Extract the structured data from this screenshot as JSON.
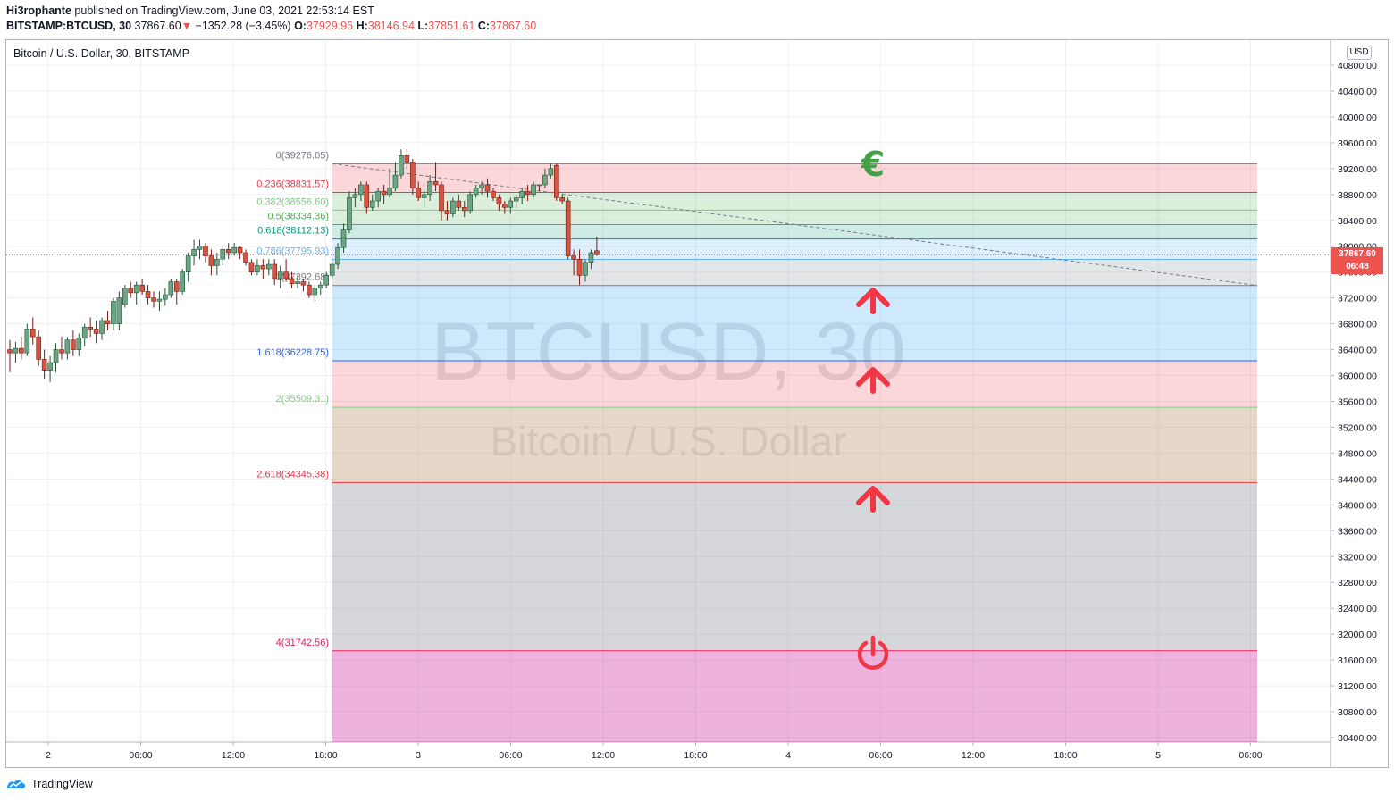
{
  "header": {
    "author": "Hi3rophante",
    "published_text": " published on TradingView.com, June 03, 2021 22:53:14 EST",
    "symbol": "BITSTAMP:BTCUSD, 30",
    "last": "37867.60",
    "change_arrow": "▼",
    "change": "−1352.28 (−3.45%)",
    "o_label": "O:",
    "o": "37929.96",
    "h_label": "H:",
    "h": "38146.94",
    "l_label": "L:",
    "l": "37851.61",
    "c_label": "C:",
    "c": "37867.60"
  },
  "legend": "Bitcoin / U.S. Dollar, 30, BITSTAMP",
  "watermark": {
    "line1": "BTCUSD, 30",
    "line2": "Bitcoin / U.S. Dollar"
  },
  "currency_badge": "USD",
  "price_tag": {
    "price": "37867.60",
    "countdown": "06:48"
  },
  "footer": {
    "brand": "TradingView"
  },
  "colors": {
    "up": "#4caf50",
    "up_body": "#6ba583",
    "down": "#d75442",
    "fib_red": "#f23645",
    "fib_green": "#4caf50",
    "fib_teal": "#089981",
    "fib_blue": "#2962ff",
    "accent": "#2196f3"
  },
  "chart_data": {
    "type": "candlestick",
    "title": "Bitcoin / U.S. Dollar, 30, BITSTAMP",
    "ylim": [
      30200,
      41000
    ],
    "yticks": [
      40800,
      40400,
      40000,
      39600,
      39200,
      38800,
      38400,
      38000,
      37600,
      37200,
      36800,
      36400,
      36000,
      35600,
      35200,
      34800,
      34400,
      34000,
      33600,
      33200,
      32800,
      32400,
      32000,
      31600,
      31200,
      30800,
      30400
    ],
    "ytick_labels": [
      "40800.00",
      "40400.00",
      "40000.00",
      "39600.00",
      "39200.00",
      "38800.00",
      "38400.00",
      "38000.00",
      "37600.00",
      "37200.00",
      "36800.00",
      "36400.00",
      "36000.00",
      "35600.00",
      "35200.00",
      "34800.00",
      "34400.00",
      "34000.00",
      "33600.00",
      "33200.00",
      "32800.00",
      "32400.00",
      "32000.00",
      "31600.00",
      "31200.00",
      "30800.00",
      "30400.00"
    ],
    "xticks": [
      "2",
      "06:00",
      "12:00",
      "18:00",
      "3",
      "06:00",
      "12:00",
      "18:00",
      "4",
      "06:00",
      "12:00",
      "18:00",
      "5",
      "06:00"
    ],
    "grid": true,
    "last_price": 37867.6,
    "fib_levels": [
      {
        "label": "0(39276.05)",
        "level": 0,
        "price": 39276.05,
        "color": "#787b86"
      },
      {
        "label": "0.236(38831.57)",
        "level": 0.236,
        "price": 38831.57,
        "color": "#f23645"
      },
      {
        "label": "0.382(38556.60)",
        "level": 0.382,
        "price": 38556.6,
        "color": "#81c784"
      },
      {
        "label": "0.5(38334.36)",
        "level": 0.5,
        "price": 38334.36,
        "color": "#4caf50"
      },
      {
        "label": "0.618(38112.13)",
        "level": 0.618,
        "price": 38112.13,
        "color": "#089981"
      },
      {
        "label": "0.786(37795.93)",
        "level": 0.786,
        "price": 37795.93,
        "color": "#64b5f6"
      },
      {
        "label": "1(37392.68)",
        "level": 1,
        "price": 37392.68,
        "color": "#787b86"
      },
      {
        "label": "1.618(36228.75)",
        "level": 1.618,
        "price": 36228.75,
        "color": "#2962ff"
      },
      {
        "label": "2(35509.31)",
        "level": 2,
        "price": 35509.31,
        "color": "#81c784"
      },
      {
        "label": "2.618(34345.38)",
        "level": 2.618,
        "price": 34345.38,
        "color": "#f23645"
      },
      {
        "label": "4(31742.56)",
        "level": 4,
        "price": 31742.56,
        "color": "#e91e63"
      }
    ],
    "candles": [
      [
        36400,
        36550,
        36050,
        36350
      ],
      [
        36350,
        36520,
        36200,
        36420
      ],
      [
        36420,
        36600,
        36250,
        36350
      ],
      [
        36350,
        36800,
        36300,
        36720
      ],
      [
        36720,
        36900,
        36480,
        36600
      ],
      [
        36600,
        36700,
        36150,
        36250
      ],
      [
        36250,
        36400,
        35950,
        36080
      ],
      [
        36080,
        36300,
        35900,
        36200
      ],
      [
        36200,
        36500,
        36050,
        36400
      ],
      [
        36400,
        36600,
        36250,
        36350
      ],
      [
        36350,
        36600,
        36250,
        36550
      ],
      [
        36550,
        36700,
        36300,
        36400
      ],
      [
        36400,
        36650,
        36300,
        36580
      ],
      [
        36580,
        36800,
        36450,
        36750
      ],
      [
        36750,
        36900,
        36600,
        36720
      ],
      [
        36720,
        36850,
        36500,
        36650
      ],
      [
        36650,
        36900,
        36550,
        36850
      ],
      [
        36850,
        37000,
        36700,
        36800
      ],
      [
        36800,
        37200,
        36700,
        37150
      ],
      [
        36800,
        37300,
        36700,
        37200
      ],
      [
        37100,
        37400,
        37050,
        37350
      ],
      [
        37350,
        37450,
        37200,
        37280
      ],
      [
        37280,
        37450,
        37100,
        37400
      ],
      [
        37400,
        37500,
        37250,
        37300
      ],
      [
        37300,
        37400,
        37100,
        37200
      ],
      [
        37200,
        37300,
        37050,
        37150
      ],
      [
        37150,
        37300,
        37000,
        37180
      ],
      [
        37180,
        37350,
        37080,
        37250
      ],
      [
        37250,
        37500,
        37200,
        37450
      ],
      [
        37450,
        37500,
        37100,
        37300
      ],
      [
        37300,
        37650,
        37250,
        37600
      ],
      [
        37600,
        37900,
        37450,
        37850
      ],
      [
        37850,
        38100,
        37700,
        37950
      ],
      [
        37950,
        38100,
        37800,
        38000
      ],
      [
        38000,
        38050,
        37750,
        37850
      ],
      [
        37850,
        37950,
        37550,
        37700
      ],
      [
        37700,
        37900,
        37550,
        37800
      ],
      [
        37800,
        38000,
        37700,
        37950
      ],
      [
        37950,
        38050,
        37800,
        37900
      ],
      [
        37900,
        38050,
        37850,
        37980
      ],
      [
        37980,
        38000,
        37800,
        37900
      ],
      [
        37900,
        37950,
        37700,
        37750
      ],
      [
        37750,
        37800,
        37550,
        37600
      ],
      [
        37600,
        37800,
        37550,
        37700
      ],
      [
        37700,
        37800,
        37500,
        37650
      ],
      [
        37650,
        37800,
        37550,
        37720
      ],
      [
        37720,
        37800,
        37400,
        37500
      ],
      [
        37500,
        37700,
        37350,
        37600
      ],
      [
        37600,
        37800,
        37450,
        37500
      ],
      [
        37500,
        37600,
        37350,
        37420
      ],
      [
        37420,
        37550,
        37350,
        37450
      ],
      [
        37450,
        37500,
        37300,
        37400
      ],
      [
        37400,
        37450,
        37200,
        37250
      ],
      [
        37250,
        37400,
        37150,
        37350
      ],
      [
        37350,
        37450,
        37250,
        37400
      ],
      [
        37400,
        37600,
        37350,
        37550
      ],
      [
        37550,
        37800,
        37500,
        37720
      ],
      [
        37720,
        38050,
        37650,
        37980
      ],
      [
        37980,
        38350,
        37900,
        38250
      ],
      [
        38250,
        38850,
        38200,
        38750
      ],
      [
        38750,
        38900,
        38600,
        38800
      ],
      [
        38800,
        39000,
        38700,
        38950
      ],
      [
        38950,
        39000,
        38500,
        38600
      ],
      [
        38600,
        38800,
        38550,
        38700
      ],
      [
        38700,
        38900,
        38600,
        38850
      ],
      [
        38850,
        38950,
        38650,
        38800
      ],
      [
        38800,
        39200,
        38750,
        38900
      ],
      [
        38900,
        39300,
        38850,
        39100
      ],
      [
        39100,
        39500,
        39050,
        39400
      ],
      [
        39400,
        39500,
        39200,
        39300
      ],
      [
        39300,
        39350,
        38800,
        38900
      ],
      [
        38900,
        39000,
        38700,
        38750
      ],
      [
        38750,
        38900,
        38600,
        38800
      ],
      [
        38800,
        39100,
        38700,
        39000
      ],
      [
        39000,
        39300,
        38850,
        38950
      ],
      [
        38950,
        39000,
        38400,
        38550
      ],
      [
        38550,
        38700,
        38400,
        38500
      ],
      [
        38500,
        38750,
        38450,
        38700
      ],
      [
        38700,
        38800,
        38550,
        38600
      ],
      [
        38600,
        38700,
        38450,
        38550
      ],
      [
        38550,
        38850,
        38500,
        38800
      ],
      [
        38800,
        38950,
        38750,
        38900
      ],
      [
        38900,
        39000,
        38800,
        38950
      ],
      [
        38950,
        39050,
        38750,
        38850
      ],
      [
        38850,
        38900,
        38700,
        38750
      ],
      [
        38750,
        38800,
        38550,
        38650
      ],
      [
        38650,
        38700,
        38500,
        38600
      ],
      [
        38600,
        38750,
        38500,
        38700
      ],
      [
        38700,
        38800,
        38600,
        38750
      ],
      [
        38750,
        38900,
        38650,
        38850
      ],
      [
        38850,
        38950,
        38700,
        38800
      ],
      [
        38800,
        39000,
        38750,
        38950
      ],
      [
        38950,
        38950,
        38850,
        38950
      ],
      [
        38950,
        39200,
        38900,
        39100
      ],
      [
        39100,
        39280,
        39050,
        39200
      ],
      [
        39250,
        39280,
        38700,
        38750
      ],
      [
        38750,
        38800,
        38650,
        38700
      ],
      [
        38700,
        38750,
        37800,
        37850
      ],
      [
        37850,
        37950,
        37550,
        37800
      ],
      [
        37800,
        37950,
        37400,
        37550
      ],
      [
        37550,
        37800,
        37450,
        37750
      ],
      [
        37750,
        37950,
        37650,
        37900
      ],
      [
        37930,
        38150,
        37850,
        37870
      ]
    ]
  }
}
